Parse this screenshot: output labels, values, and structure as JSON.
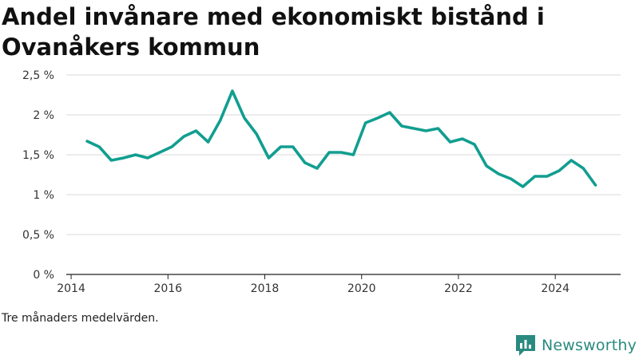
{
  "title": "Andel invånare med ekonomiskt bistånd i Ovanåkers kommun",
  "note": "Tre månaders medelvärden.",
  "brand": {
    "name": "Newsworthy",
    "icon": "newsworthy-logo-icon",
    "color": "#2a8a80"
  },
  "chart_data": {
    "type": "line",
    "title": "Andel invånare med ekonomiskt bistånd i Ovanåkers kommun",
    "xlabel": "",
    "ylabel": "",
    "line_color": "#119e90",
    "grid": true,
    "xlim": [
      2013.9,
      2025.35
    ],
    "ylim": [
      0,
      2.5
    ],
    "x_ticks": [
      {
        "value": 2014,
        "label": "2014"
      },
      {
        "value": 2016,
        "label": "2016"
      },
      {
        "value": 2018,
        "label": "2018"
      },
      {
        "value": 2020,
        "label": "2020"
      },
      {
        "value": 2022,
        "label": "2022"
      },
      {
        "value": 2024,
        "label": "2024"
      }
    ],
    "y_ticks": [
      {
        "value": 0,
        "label": "0 %"
      },
      {
        "value": 0.5,
        "label": "0,5 %"
      },
      {
        "value": 1,
        "label": "1 %"
      },
      {
        "value": 1.5,
        "label": "1,5 %"
      },
      {
        "value": 2,
        "label": "2 %"
      },
      {
        "value": 2.5,
        "label": "2,5 %"
      }
    ],
    "series": [
      {
        "x": [
          2014.33,
          2014.58,
          2014.83,
          2015.08,
          2015.33,
          2015.58,
          2015.83,
          2016.08,
          2016.33,
          2016.58,
          2016.83,
          2017.08,
          2017.33,
          2017.58,
          2017.83,
          2018.08,
          2018.33,
          2018.58,
          2018.83,
          2019.08,
          2019.33,
          2019.58,
          2019.83,
          2020.08,
          2020.33,
          2020.58,
          2020.83,
          2021.08,
          2021.33,
          2021.58,
          2021.83,
          2022.08,
          2022.33,
          2022.58,
          2022.83,
          2023.08,
          2023.33,
          2023.58,
          2023.83,
          2024.08,
          2024.33,
          2024.58,
          2024.83
        ],
        "values": [
          1.67,
          1.6,
          1.43,
          1.46,
          1.5,
          1.46,
          1.53,
          1.6,
          1.73,
          1.8,
          1.66,
          1.93,
          2.3,
          1.96,
          1.76,
          1.46,
          1.6,
          1.6,
          1.4,
          1.33,
          1.53,
          1.53,
          1.5,
          1.9,
          1.96,
          2.03,
          1.86,
          1.83,
          1.8,
          1.83,
          1.66,
          1.7,
          1.63,
          1.36,
          1.26,
          1.2,
          1.1,
          1.23,
          1.23,
          1.3,
          1.43,
          1.33,
          1.12
        ]
      }
    ]
  }
}
